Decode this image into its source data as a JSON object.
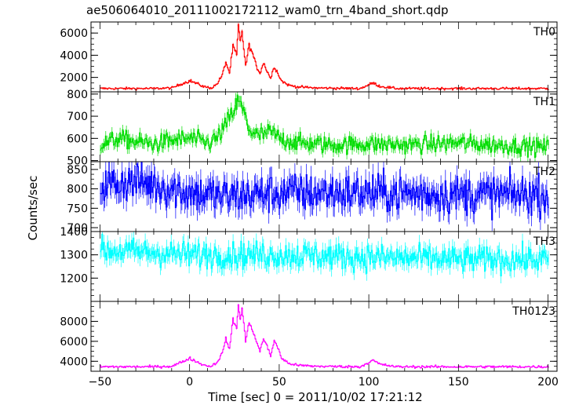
{
  "title": "ae506064010_20111002172112_wam0_trn_4band_short.qdp",
  "chart_data": {
    "type": "line",
    "title": "ae506064010_20111002172112_wam0_trn_4band_short.qdp",
    "xlabel": "Time [sec] 0 = 2011/10/02 17:21:12",
    "ylabel": "Counts/sec",
    "xlim": [
      -55,
      205
    ],
    "x_ticks": [
      -50,
      0,
      50,
      100,
      150,
      200
    ],
    "x_tick_labels": [
      "−50",
      "0",
      "50",
      "100",
      "150",
      "200"
    ],
    "panels": [
      {
        "name": "TH0",
        "color": "#ff0000",
        "ylim": [
          700,
          7000
        ],
        "y_ticks": [
          2000,
          4000,
          6000
        ],
        "y_tick_labels": [
          "2000",
          "4000",
          "6000"
        ],
        "baseline": 1000,
        "noise": 60,
        "points": [
          [
            -50,
            1000
          ],
          [
            -20,
            1000
          ],
          [
            -10,
            1050
          ],
          [
            -5,
            1400
          ],
          [
            0,
            1700
          ],
          [
            3,
            1500
          ],
          [
            8,
            1150
          ],
          [
            12,
            1050
          ],
          [
            15,
            1400
          ],
          [
            18,
            2200
          ],
          [
            20,
            3400
          ],
          [
            22,
            2400
          ],
          [
            24,
            4800
          ],
          [
            26,
            4000
          ],
          [
            27,
            6700
          ],
          [
            28,
            5200
          ],
          [
            29,
            6200
          ],
          [
            30,
            4600
          ],
          [
            31,
            3000
          ],
          [
            33,
            4900
          ],
          [
            35,
            4100
          ],
          [
            37,
            3000
          ],
          [
            39,
            2400
          ],
          [
            41,
            3300
          ],
          [
            43,
            2600
          ],
          [
            45,
            1900
          ],
          [
            47,
            3000
          ],
          [
            49,
            2400
          ],
          [
            51,
            1700
          ],
          [
            55,
            1300
          ],
          [
            60,
            1150
          ],
          [
            70,
            1050
          ],
          [
            95,
            1000
          ],
          [
            102,
            1500
          ],
          [
            106,
            1200
          ],
          [
            115,
            1000
          ],
          [
            200,
            1000
          ]
        ]
      },
      {
        "name": "TH1",
        "color": "#00dd00",
        "ylim": [
          495,
          810
        ],
        "y_ticks": [
          500,
          600,
          700,
          800
        ],
        "y_tick_labels": [
          "500",
          "600",
          "700",
          "800"
        ],
        "baseline": 575,
        "noise": 22,
        "points": [
          [
            -50,
            570
          ],
          [
            -40,
            600
          ],
          [
            -30,
            585
          ],
          [
            -20,
            575
          ],
          [
            -10,
            590
          ],
          [
            0,
            600
          ],
          [
            10,
            580
          ],
          [
            15,
            600
          ],
          [
            20,
            660
          ],
          [
            24,
            720
          ],
          [
            27,
            770
          ],
          [
            30,
            720
          ],
          [
            33,
            640
          ],
          [
            38,
            610
          ],
          [
            45,
            630
          ],
          [
            50,
            600
          ],
          [
            60,
            580
          ],
          [
            80,
            570
          ],
          [
            100,
            575
          ],
          [
            120,
            570
          ],
          [
            150,
            580
          ],
          [
            170,
            570
          ],
          [
            200,
            560
          ]
        ]
      },
      {
        "name": "TH2",
        "color": "#0000ff",
        "ylim": [
          690,
          870
        ],
        "y_ticks": [
          700,
          750,
          800,
          850
        ],
        "y_tick_labels": [
          "700",
          "750",
          "800",
          "850"
        ],
        "baseline": 790,
        "noise": 28,
        "points": [
          [
            -50,
            810
          ],
          [
            -30,
            820
          ],
          [
            -10,
            800
          ],
          [
            0,
            790
          ],
          [
            20,
            780
          ],
          [
            50,
            790
          ],
          [
            100,
            790
          ],
          [
            150,
            785
          ],
          [
            200,
            785
          ]
        ]
      },
      {
        "name": "TH3",
        "color": "#00ffff",
        "ylim": [
          1100,
          1400
        ],
        "y_ticks": [
          1200,
          1300,
          1400
        ],
        "y_tick_labels": [
          "1200",
          "1300",
          "1400"
        ],
        "baseline": 1300,
        "noise": 32,
        "points": [
          [
            -50,
            1320
          ],
          [
            -20,
            1310
          ],
          [
            0,
            1300
          ],
          [
            50,
            1300
          ],
          [
            100,
            1290
          ],
          [
            150,
            1280
          ],
          [
            200,
            1280
          ]
        ]
      },
      {
        "name": "TH0123",
        "color": "#ff00ff",
        "ylim": [
          3000,
          10000
        ],
        "y_ticks": [
          4000,
          6000,
          8000
        ],
        "y_tick_labels": [
          "4000",
          "6000",
          "8000"
        ],
        "baseline": 3450,
        "noise": 70,
        "points": [
          [
            -50,
            3450
          ],
          [
            -20,
            3450
          ],
          [
            -10,
            3500
          ],
          [
            -5,
            3900
          ],
          [
            0,
            4300
          ],
          [
            3,
            4000
          ],
          [
            8,
            3600
          ],
          [
            12,
            3500
          ],
          [
            15,
            3900
          ],
          [
            18,
            4800
          ],
          [
            20,
            6300
          ],
          [
            22,
            5200
          ],
          [
            24,
            8200
          ],
          [
            26,
            7300
          ],
          [
            27,
            9600
          ],
          [
            28,
            8300
          ],
          [
            29,
            9300
          ],
          [
            30,
            7800
          ],
          [
            31,
            6000
          ],
          [
            33,
            7900
          ],
          [
            35,
            7100
          ],
          [
            37,
            6000
          ],
          [
            39,
            5000
          ],
          [
            41,
            6300
          ],
          [
            43,
            5500
          ],
          [
            45,
            4500
          ],
          [
            47,
            6100
          ],
          [
            49,
            5400
          ],
          [
            51,
            4300
          ],
          [
            55,
            3800
          ],
          [
            60,
            3600
          ],
          [
            70,
            3500
          ],
          [
            95,
            3450
          ],
          [
            102,
            4100
          ],
          [
            106,
            3700
          ],
          [
            115,
            3450
          ],
          [
            200,
            3450
          ]
        ]
      }
    ]
  }
}
